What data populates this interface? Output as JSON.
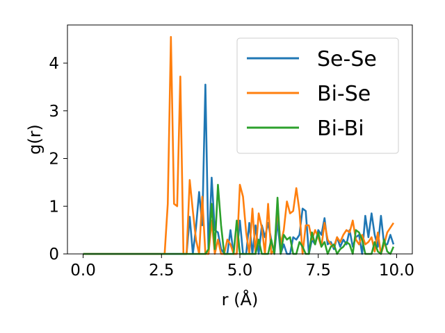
{
  "chart_data": {
    "type": "line",
    "title": "",
    "xlabel": "r (Å)",
    "ylabel": "g(r)",
    "xlim": [
      -0.5,
      10.5
    ],
    "ylim": [
      0,
      4.8
    ],
    "xticks": [
      0.0,
      2.5,
      5.0,
      7.5,
      10.0
    ],
    "xtick_labels": [
      "0.0",
      "2.5",
      "5.0",
      "7.5",
      "10.0"
    ],
    "yticks": [
      0,
      1,
      2,
      3,
      4
    ],
    "ytick_labels": [
      "0",
      "1",
      "2",
      "3",
      "4"
    ],
    "grid": false,
    "legend_position": "upper-right",
    "series": [
      {
        "name": "Se-Se",
        "color": "#1f77b4",
        "x": [
          0.0,
          3.3,
          3.4,
          3.5,
          3.6,
          3.7,
          3.8,
          3.9,
          4.0,
          4.1,
          4.2,
          4.3,
          4.4,
          4.5,
          4.6,
          4.7,
          4.8,
          4.9,
          5.0,
          5.1,
          5.2,
          5.3,
          5.4,
          5.5,
          5.6,
          5.7,
          5.8,
          5.9,
          6.0,
          6.1,
          6.2,
          6.3,
          6.4,
          6.5,
          6.6,
          6.7,
          6.8,
          6.9,
          7.0,
          7.1,
          7.2,
          7.3,
          7.4,
          7.5,
          7.6,
          7.7,
          7.8,
          7.9,
          8.0,
          8.1,
          8.2,
          8.3,
          8.4,
          8.5,
          8.6,
          8.7,
          8.8,
          8.9,
          9.0,
          9.1,
          9.2,
          9.3,
          9.4,
          9.5,
          9.6,
          9.7,
          9.8,
          9.9
        ],
        "values": [
          0.0,
          0.0,
          0.78,
          0.0,
          0.55,
          1.3,
          0.6,
          3.55,
          0.0,
          1.6,
          0.5,
          0.45,
          0.1,
          0.0,
          0.0,
          0.5,
          0.0,
          0.0,
          0.7,
          0.0,
          0.0,
          0.65,
          0.0,
          0.6,
          0.0,
          0.6,
          0.35,
          0.65,
          0.3,
          0.0,
          0.7,
          0.0,
          0.2,
          0.0,
          0.0,
          0.35,
          0.3,
          0.4,
          0.95,
          0.9,
          0.0,
          0.3,
          0.2,
          0.5,
          0.4,
          0.75,
          0.2,
          0.25,
          0.1,
          0.35,
          0.15,
          0.3,
          0.2,
          0.5,
          0.15,
          0.35,
          0.4,
          0.0,
          0.8,
          0.35,
          0.85,
          0.4,
          0.15,
          0.8,
          0.2,
          0.2,
          0.4,
          0.2
        ]
      },
      {
        "name": "Bi-Se",
        "color": "#ff7f0e",
        "x": [
          0.0,
          2.6,
          2.7,
          2.8,
          2.9,
          3.0,
          3.1,
          3.2,
          3.3,
          3.4,
          3.5,
          3.6,
          3.7,
          3.8,
          3.9,
          4.0,
          4.1,
          4.2,
          4.3,
          4.4,
          4.5,
          4.6,
          4.7,
          4.8,
          4.9,
          5.0,
          5.1,
          5.2,
          5.3,
          5.4,
          5.5,
          5.6,
          5.7,
          5.8,
          5.9,
          6.0,
          6.1,
          6.2,
          6.3,
          6.4,
          6.5,
          6.6,
          6.7,
          6.8,
          6.9,
          7.0,
          7.1,
          7.2,
          7.3,
          7.4,
          7.5,
          7.6,
          7.7,
          7.8,
          7.9,
          8.0,
          8.1,
          8.2,
          8.3,
          8.4,
          8.5,
          8.6,
          8.7,
          8.8,
          8.9,
          9.0,
          9.1,
          9.2,
          9.3,
          9.4,
          9.5,
          9.6,
          9.7,
          9.8,
          9.9
        ],
        "values": [
          0.0,
          0.0,
          1.05,
          4.55,
          1.05,
          1.0,
          3.72,
          0.0,
          0.0,
          1.55,
          0.9,
          0.3,
          0.0,
          1.2,
          0.0,
          0.0,
          0.7,
          0.0,
          0.3,
          0.0,
          0.0,
          0.3,
          0.2,
          0.0,
          0.0,
          1.45,
          1.2,
          0.45,
          0.0,
          0.95,
          0.0,
          0.85,
          0.55,
          0.0,
          1.05,
          0.0,
          0.1,
          0.95,
          0.2,
          0.5,
          1.1,
          0.85,
          0.9,
          1.38,
          0.9,
          0.0,
          0.6,
          0.6,
          0.3,
          0.5,
          0.35,
          0.15,
          0.65,
          0.3,
          0.2,
          0.15,
          0.35,
          0.25,
          0.4,
          0.5,
          0.45,
          0.7,
          0.3,
          0.2,
          0.4,
          0.2,
          0.25,
          0.35,
          0.05,
          0.45,
          0.0,
          0.2,
          0.45,
          0.55,
          0.65
        ]
      },
      {
        "name": "Bi-Bi",
        "color": "#2ca02c",
        "x": [
          0.0,
          3.8,
          3.9,
          4.0,
          4.1,
          4.2,
          4.3,
          4.4,
          4.5,
          4.6,
          4.7,
          4.8,
          4.9,
          5.0,
          5.1,
          5.2,
          5.3,
          5.4,
          5.5,
          5.6,
          5.7,
          5.8,
          5.9,
          6.0,
          6.1,
          6.2,
          6.3,
          6.4,
          6.5,
          6.6,
          6.7,
          6.8,
          6.9,
          7.0,
          7.1,
          7.2,
          7.3,
          7.4,
          7.5,
          7.6,
          7.7,
          7.8,
          7.9,
          8.0,
          8.1,
          8.2,
          8.3,
          8.4,
          8.5,
          8.6,
          8.7,
          8.8,
          8.9,
          9.0,
          9.1,
          9.2,
          9.3,
          9.4,
          9.5,
          9.6,
          9.7,
          9.8,
          9.9
        ],
        "values": [
          0.0,
          0.0,
          0.0,
          0.1,
          1.05,
          0.1,
          1.45,
          0.6,
          0.0,
          0.0,
          0.0,
          0.0,
          0.7,
          0.0,
          0.0,
          0.0,
          0.0,
          0.0,
          0.0,
          0.3,
          0.0,
          0.0,
          0.0,
          0.3,
          0.0,
          1.18,
          0.0,
          0.4,
          0.3,
          0.35,
          0.0,
          0.0,
          0.25,
          0.15,
          0.0,
          0.0,
          0.45,
          0.2,
          0.45,
          0.15,
          0.25,
          0.0,
          0.15,
          0.2,
          0.0,
          0.1,
          0.15,
          0.25,
          0.2,
          0.0,
          0.5,
          0.45,
          0.3,
          0.0,
          0.0,
          0.0,
          0.25,
          0.05,
          0.0,
          0.3,
          0.05,
          0.0,
          0.15
        ]
      }
    ]
  }
}
